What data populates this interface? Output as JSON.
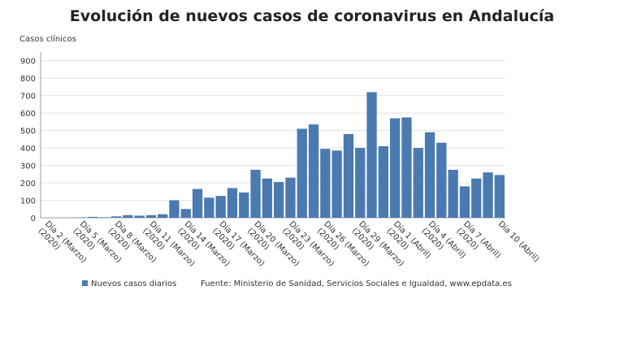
{
  "chart_data": {
    "type": "bar",
    "title": "Evolución de nuevos casos de coronavirus en Andalucía",
    "y_label": "Casos clínicos",
    "source": "Fuente: Ministerio de Sanidad, Servicios Sociales e Igualdad, www.epdata.es",
    "categories": [
      "Día 2 (Marzo)",
      null,
      null,
      "Día 5 (Marzo)",
      null,
      null,
      "Día 8 (Marzo)",
      null,
      null,
      "Día 11 (Marzo)",
      null,
      null,
      "Día 14 (Marzo)",
      null,
      null,
      "Día 17 (Marzo)",
      null,
      null,
      "Día 20 (Marzo)",
      null,
      null,
      "Día 23 (Marzo)",
      null,
      null,
      "Día 26 (Marzo)",
      null,
      null,
      "Día 29 (Marzo)",
      null,
      null,
      "Día 1 (Abril)",
      null,
      null,
      "Día 4 (Abril)",
      null,
      null,
      "Día 7 (Abril)",
      null,
      null,
      "Día 10 (Abril)"
    ],
    "category_sublabels": [
      "(2020)",
      null,
      null,
      "(2020)",
      null,
      null,
      "(2020)",
      null,
      null,
      "(2020)",
      null,
      null,
      "(2020)",
      null,
      null,
      "(2020)",
      null,
      null,
      "(2020)",
      null,
      null,
      "(2020)",
      null,
      null,
      "(2020)",
      null,
      null,
      "(2020)",
      null,
      null,
      "(2020)",
      null,
      null,
      "(2020)",
      null,
      null,
      "(2020)",
      null,
      null,
      null
    ],
    "series": [
      {
        "name": "Nuevos casos diarios",
        "color": "#4a7ab0",
        "values": [
          0,
          0,
          0,
          2,
          5,
          3,
          8,
          15,
          12,
          15,
          20,
          100,
          50,
          165,
          115,
          125,
          170,
          145,
          275,
          225,
          205,
          230,
          510,
          535,
          395,
          385,
          480,
          400,
          720,
          410,
          570,
          575,
          400,
          490,
          430,
          275,
          180,
          225,
          260,
          245
        ]
      }
    ],
    "ylim": [
      0,
      950
    ],
    "yticks": [
      0,
      100,
      200,
      300,
      400,
      500,
      600,
      700,
      800,
      900
    ],
    "grid": true
  }
}
